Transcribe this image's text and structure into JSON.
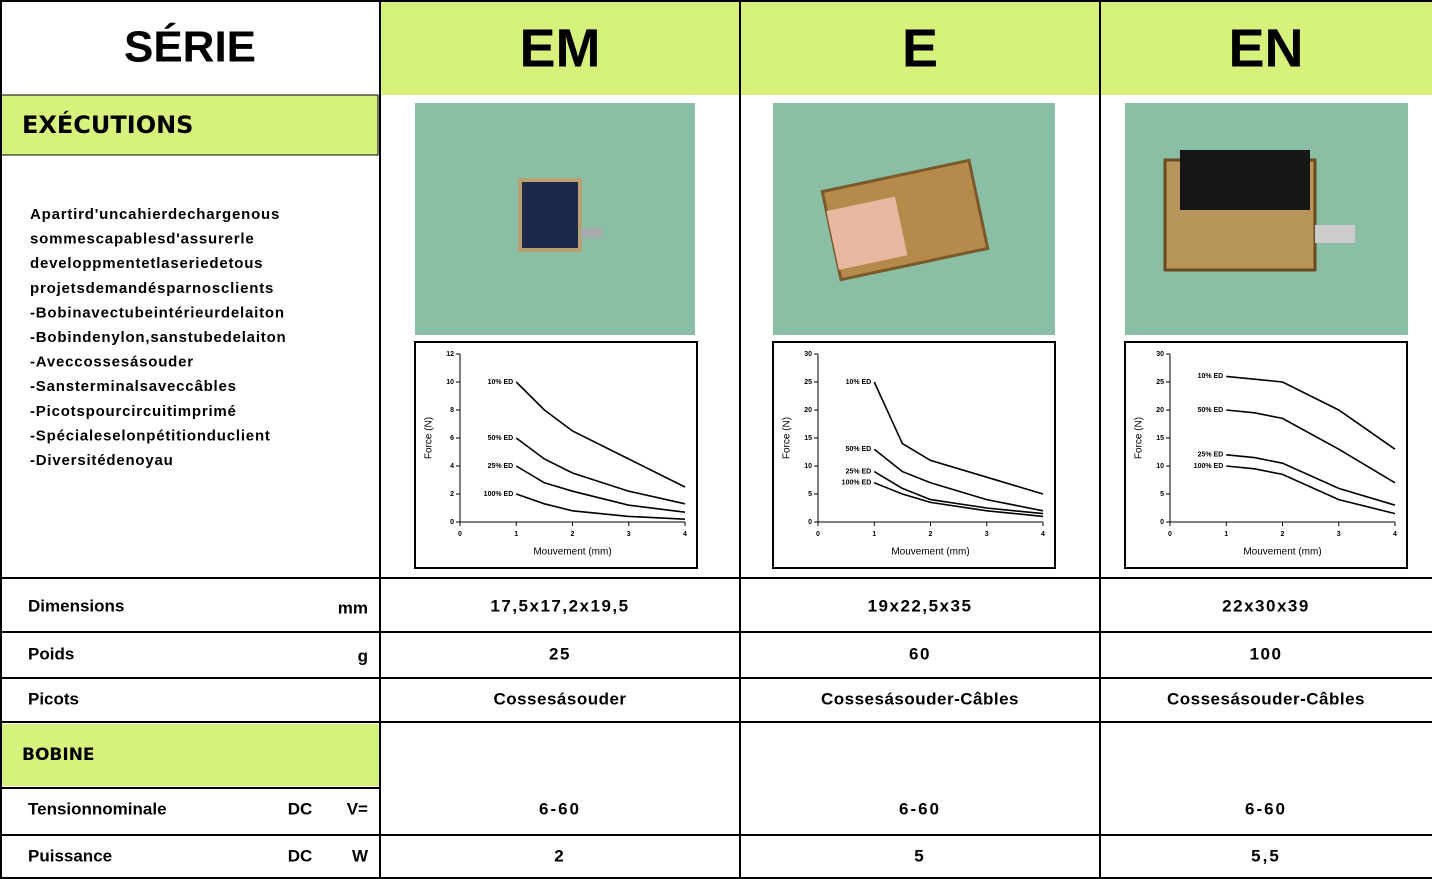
{
  "header": {
    "serie_label": "SÉRIE",
    "series": [
      "EM",
      "E",
      "EN"
    ]
  },
  "executions": {
    "title": "EXÉCUTIONS",
    "description": [
      "Apartird'uncahierdechargenous",
      "sommescapablesd'assurerle",
      "developpmentetlaseriedetous",
      "projetsdemandésparnosclients",
      "-Bobinavectubeintérieurdelaiton",
      "-Bobindenylon,sanstubedelaiton",
      "-Aveccossesásouder",
      "-Sansterminalsaveccâbles",
      "-Picotspourcircuitimprimé",
      "-Spécialeselonpétitionduclient",
      "-Diversitédenoyau"
    ]
  },
  "charts": [
    {
      "type": "line",
      "x_label": "Mouvement (mm)",
      "y_label": "Force (N)",
      "x": [
        1,
        1.5,
        2,
        3,
        4
      ],
      "xlim": [
        0,
        4
      ],
      "xticks": [
        0,
        1,
        2,
        3,
        4
      ],
      "ylim": [
        0,
        12
      ],
      "yticks": [
        0,
        2,
        4,
        6,
        8,
        10,
        12
      ],
      "series": [
        {
          "name": "10% ED",
          "color": "#000000",
          "values": [
            10,
            8,
            6.5,
            4.5,
            2.5
          ]
        },
        {
          "name": "50% ED",
          "color": "#000000",
          "values": [
            6,
            4.5,
            3.5,
            2.2,
            1.3
          ]
        },
        {
          "name": "25% ED",
          "color": "#000000",
          "values": [
            4,
            2.8,
            2.2,
            1.2,
            0.7
          ]
        },
        {
          "name": "100% ED",
          "color": "#000000",
          "values": [
            2,
            1.3,
            0.8,
            0.4,
            0.2
          ]
        }
      ]
    },
    {
      "type": "line",
      "x_label": "Mouvement (mm)",
      "y_label": "Force (N)",
      "x": [
        1,
        1.5,
        2,
        3,
        4
      ],
      "xlim": [
        0,
        4
      ],
      "xticks": [
        0,
        1,
        2,
        3,
        4
      ],
      "ylim": [
        0,
        30
      ],
      "yticks": [
        0,
        5,
        10,
        15,
        20,
        25,
        30
      ],
      "series": [
        {
          "name": "10% ED",
          "color": "#000000",
          "values": [
            25,
            14,
            11,
            8,
            5
          ]
        },
        {
          "name": "50% ED",
          "color": "#000000",
          "values": [
            13,
            9,
            7,
            4,
            2
          ]
        },
        {
          "name": "25% ED",
          "color": "#000000",
          "values": [
            9,
            6,
            4,
            2.5,
            1.5
          ]
        },
        {
          "name": "100% ED",
          "color": "#000000",
          "values": [
            7,
            5,
            3.5,
            2,
            1
          ]
        }
      ]
    },
    {
      "type": "line",
      "x_label": "Mouvement (mm)",
      "y_label": "Force (N)",
      "x": [
        1,
        1.5,
        2,
        3,
        4
      ],
      "xlim": [
        0,
        4
      ],
      "xticks": [
        0,
        1,
        2,
        3,
        4
      ],
      "ylim": [
        0,
        30
      ],
      "yticks": [
        0,
        5,
        10,
        15,
        20,
        25,
        30
      ],
      "series": [
        {
          "name": "10% ED",
          "color": "#000000",
          "values": [
            26,
            25.5,
            25,
            20,
            13
          ]
        },
        {
          "name": "50% ED",
          "color": "#000000",
          "values": [
            20,
            19.5,
            18.5,
            13,
            7
          ]
        },
        {
          "name": "25% ED",
          "color": "#000000",
          "values": [
            12,
            11.5,
            10.5,
            6,
            3
          ]
        },
        {
          "name": "100% ED",
          "color": "#000000",
          "values": [
            10,
            9.5,
            8.5,
            4,
            1.5
          ]
        }
      ]
    }
  ],
  "rows": [
    {
      "label": "Dimensions",
      "unit": "mm",
      "values": [
        "17,5x17,2x19,5",
        "19x22,5x35",
        "22x30x39"
      ]
    },
    {
      "label": "Poids",
      "unit": "g",
      "values": [
        "25",
        "60",
        "100"
      ]
    },
    {
      "label": "Picots",
      "values": [
        "Cossesásouder",
        "Cossesásouder-Câbles",
        "Cossesásouder-Câbles"
      ]
    }
  ],
  "bobine": {
    "title": "BOBINE",
    "rows": [
      {
        "label": "Tensionnominale",
        "current": "DC",
        "unit": "V=",
        "values": [
          "6-60",
          "6-60",
          "6-60"
        ]
      },
      {
        "label": "Puissance",
        "current": "DC",
        "unit": "W",
        "values": [
          "2",
          "5",
          "5,5"
        ]
      }
    ]
  }
}
